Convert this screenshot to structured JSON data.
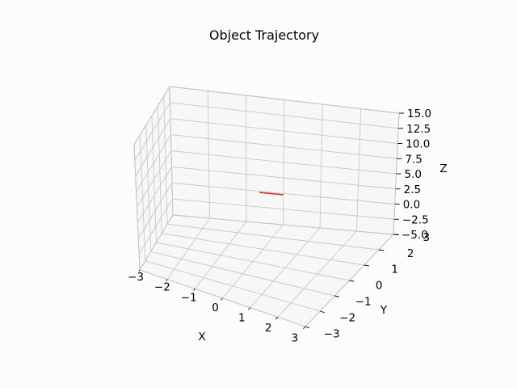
{
  "chart_data": {
    "type": "line",
    "projection": "3d",
    "title": "Object Trajectory",
    "xlabel": "X",
    "ylabel": "Y",
    "zlabel": "Z",
    "xlim": [
      -3,
      3
    ],
    "ylim": [
      -3,
      3
    ],
    "zlim": [
      -5,
      15
    ],
    "x_ticks": [
      "−3",
      "−2",
      "−1",
      "0",
      "1",
      "2",
      "3"
    ],
    "y_ticks": [
      "−3",
      "−2",
      "−1",
      "0",
      "1",
      "2",
      "3"
    ],
    "z_ticks": [
      "−5.0",
      "−2.5",
      "0.0",
      "2.5",
      "5.0",
      "7.5",
      "10.0",
      "12.5",
      "15.0"
    ],
    "grid": true,
    "series": [
      {
        "color": "#d62728",
        "points": [
          {
            "x": -0.6,
            "y": 2.9,
            "z": 0.0
          },
          {
            "x": -0.3,
            "y": 2.9,
            "z": 0.0
          },
          {
            "x": 0.0,
            "y": 2.9,
            "z": 0.0
          }
        ]
      }
    ]
  }
}
